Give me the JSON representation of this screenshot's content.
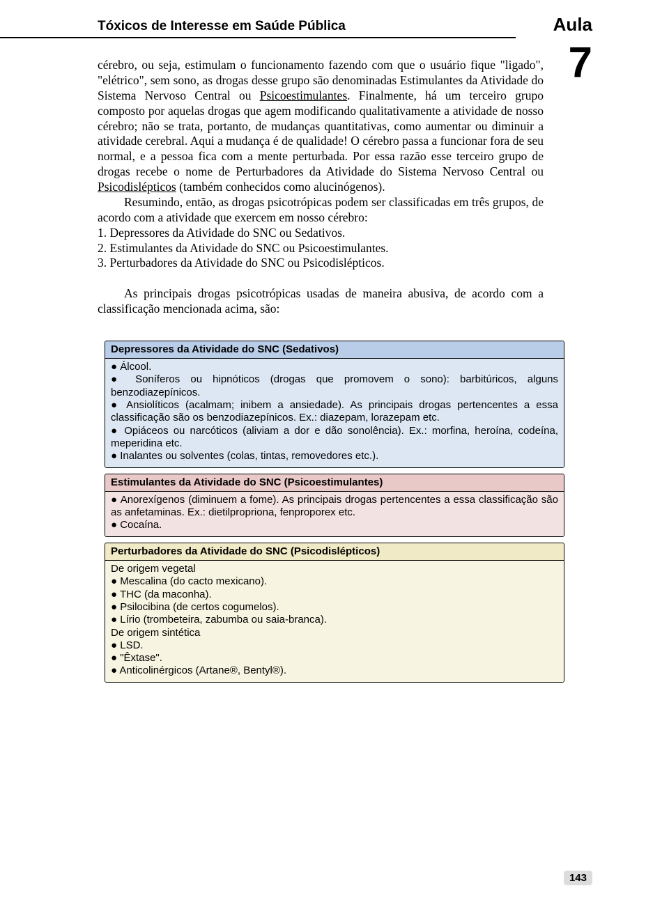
{
  "header": {
    "title": "Tóxicos de Interesse em Saúde Pública",
    "aula_label": "Aula",
    "aula_number": "7"
  },
  "body": {
    "para1_a": "cérebro, ou seja, estimulam o funcionamento fazendo com que o usuário fique \"ligado\", \"elétrico\", sem sono, as drogas desse grupo são denominadas Estimulantes da Atividade do Sistema Nervoso Central ou ",
    "para1_u1": "Psicoestimulantes",
    "para1_b": ". Finalmente, há um terceiro grupo composto por aquelas drogas que agem modificando qualitativamente a atividade de nosso cérebro; não se trata, portanto, de mudanças quantitativas, como aumentar ou diminuir a atividade cerebral. Aqui a mudança é de qualidade! O cérebro passa a funcionar fora de seu normal, e a pessoa fica com a mente perturbada. Por essa razão esse terceiro grupo de drogas recebe o nome de Perturbadores da Atividade do Sistema Nervoso Central ou ",
    "para1_u2": "Psicodislépticos",
    "para1_c": " (também conhecidos como alucinógenos).",
    "para2": "Resumindo, então, as drogas psicotrópicas podem ser classificadas em três grupos, de acordo com a atividade que exercem em nosso cérebro:",
    "list1": "1. Depressores da Atividade do SNC ou Sedativos.",
    "list2": "2. Estimulantes da Atividade do SNC ou Psicoestimulantes.",
    "list3": "3. Perturbadores da Atividade do SNC ou Psicodislépticos.",
    "para3": "As principais drogas psicotrópicas usadas de maneira abusiva, de acordo com a classificação mencionada acima, são:"
  },
  "boxes": {
    "blue": {
      "header_bg": "#b9cde8",
      "body_bg": "#dde7f3",
      "header": "Depressores da Atividade do SNC (Sedativos)",
      "rows": [
        "● Álcool.",
        "● Soníferos ou hipnóticos (drogas que promovem o sono): barbitúricos, alguns benzodiazepínicos.",
        "● Ansiolíticos (acalmam; inibem a ansiedade). As principais drogas pertencentes a essa classificação são os benzodiazepínicos. Ex.: diazepam, lorazepam etc.",
        "● Opiáceos ou narcóticos (aliviam a dor e dão sonolência). Ex.: morfina, heroína, codeína, meperidina etc.",
        "● Inalantes ou solventes (colas, tintas, removedores etc.)."
      ]
    },
    "pink": {
      "header_bg": "#e9c8c8",
      "body_bg": "#f3e2e2",
      "header": "Estimulantes da Atividade do SNC (Psicoestimulantes)",
      "rows": [
        "● Anorexígenos (diminuem a fome). As principais drogas pertencentes a essa classificação são as anfetaminas. Ex.: dietilpropriona, fenproporex etc.",
        "● Cocaína."
      ]
    },
    "yellow": {
      "header_bg": "#f0eac6",
      "body_bg": "#f7f4e1",
      "header": "Perturbadores da Atividade do SNC (Psicodislépticos)",
      "rows": [
        "De origem vegetal",
        "● Mescalina (do cacto mexicano).",
        "● THC (da maconha).",
        "● Psilocibina (de certos cogumelos).",
        "● Lírio (trombeteira, zabumba ou saia-branca).",
        "De origem sintética",
        "● LSD.",
        "● \"Êxtase\".",
        "● Anticolinérgicos (Artane®, Bentyl®)."
      ]
    }
  },
  "page_number": "143"
}
